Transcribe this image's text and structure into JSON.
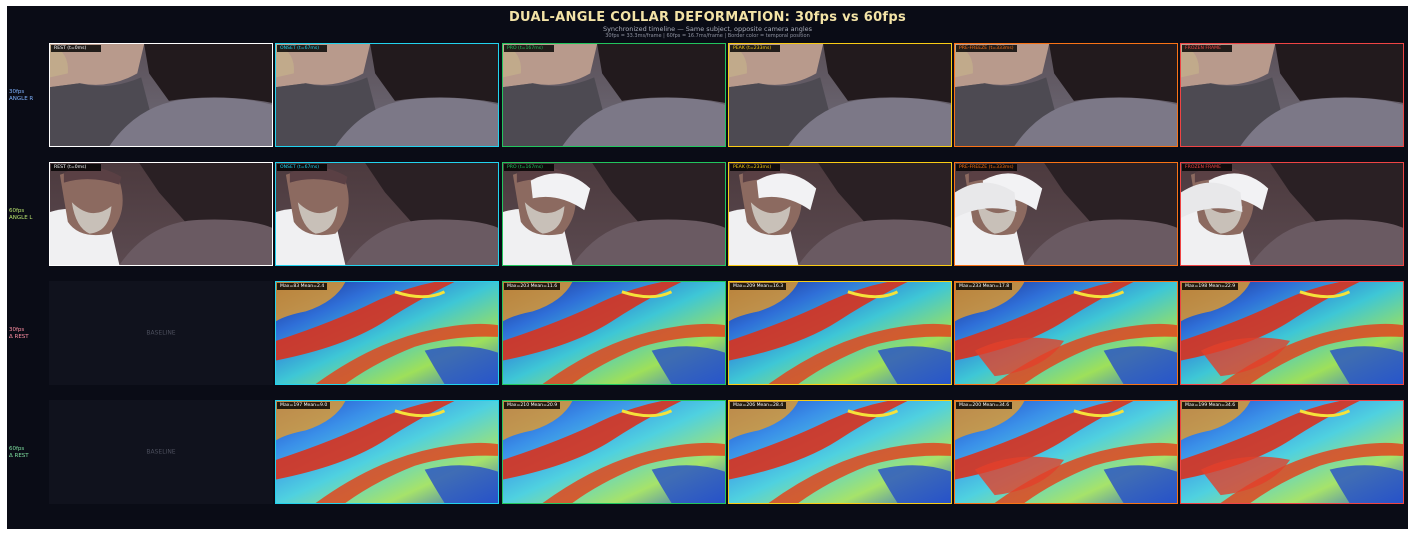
{
  "title": "DUAL-ANGLE COLLAR DEFORMATION: 30fps vs 60fps",
  "subtitle": "Synchronized timeline — Same subject, opposite camera angles",
  "subtitle2": "30fps = 33.3ms/frame | 60fps = 16.7ms/frame | Border color = temporal position",
  "colors": {
    "rest": "#ffffff",
    "onset": "#22d3ee",
    "pro": "#22c55e",
    "peak": "#facc15",
    "prefreeze": "#f97316",
    "frozen": "#ef4444"
  },
  "rows": [
    {
      "line1": "30fps",
      "line2": "ANGLE R",
      "color": "#7fb3ff"
    },
    {
      "line1": "60fps",
      "line2": "ANGLE L",
      "color": "#b8e36e"
    },
    {
      "line1": "30fps",
      "line2": "Δ REST",
      "color": "#ff8fa3"
    },
    {
      "line1": "60fps",
      "line2": "Δ REST",
      "color": "#7fe0a0"
    }
  ],
  "frame_labels": [
    "REST (t=0ms)",
    "ONSET (t=67ms)",
    "PRO (t=167ms)",
    "PEAK (t=233ms)",
    "PRE-FREEZE (t=333ms)",
    "FROZEN FRAME"
  ],
  "baseline_label": "BASELINE",
  "diff_30": [
    "Max=83 Mean=2.4",
    "Max=203 Mean=11.6",
    "Max=209 Mean=16.3",
    "Max=233 Mean=17.8",
    "Max=198 Mean=22.9"
  ],
  "diff_60": [
    "Max=197 Mean=9.0",
    "Max=210 Mean=20.9",
    "Max=206 Mean=28.4",
    "Max=200 Mean=34.6",
    "Max=199 Mean=34.6"
  ]
}
